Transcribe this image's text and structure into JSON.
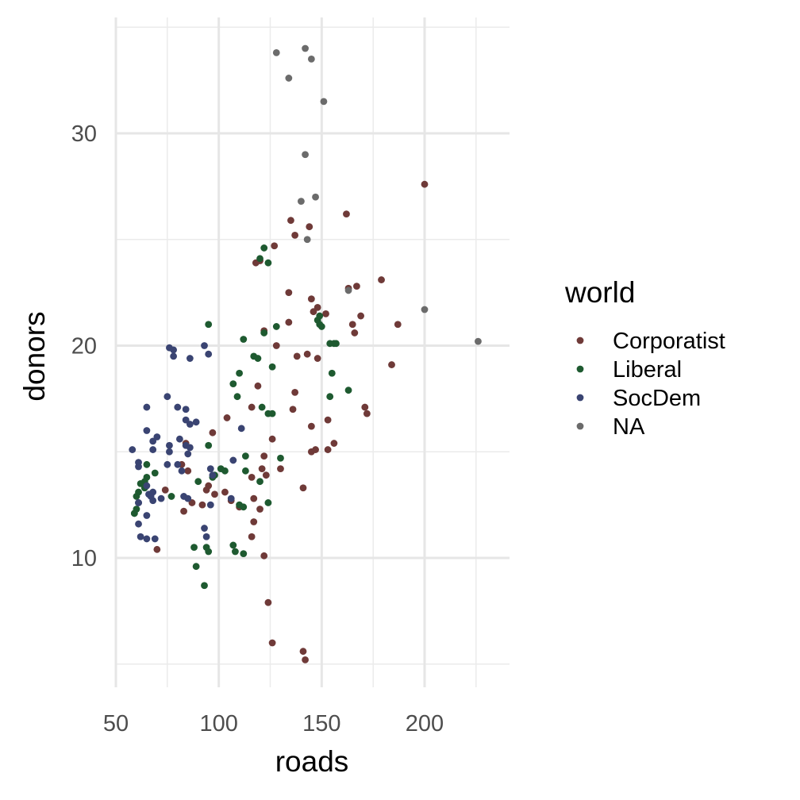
{
  "chart_data": {
    "type": "scatter",
    "xlabel": "roads",
    "ylabel": "donors",
    "xlim": [
      50,
      235
    ],
    "ylim": [
      5,
      35
    ],
    "x_ticks": [
      50,
      100,
      150,
      200
    ],
    "y_ticks": [
      10,
      20,
      30
    ],
    "x_tick_labels": [
      "50",
      "100",
      "150",
      "200"
    ],
    "y_tick_labels": [
      "10",
      "20",
      "30"
    ],
    "grid": true,
    "legend": {
      "title": "world",
      "position": "right",
      "entries": [
        "Corporatist",
        "Liberal",
        "SocDem",
        "NA"
      ]
    },
    "series": [
      {
        "name": "Corporatist",
        "color": "#6f3a38",
        "points": [
          [
            200,
            27.6
          ],
          [
            162,
            26.2
          ],
          [
            144,
            25.6
          ],
          [
            135,
            25.9
          ],
          [
            137,
            25.2
          ],
          [
            127,
            24.7
          ],
          [
            120,
            24.0
          ],
          [
            118,
            23.9
          ],
          [
            179,
            23.1
          ],
          [
            167,
            22.8
          ],
          [
            163,
            22.7
          ],
          [
            134,
            22.5
          ],
          [
            145,
            22.2
          ],
          [
            148,
            21.8
          ],
          [
            146,
            21.6
          ],
          [
            152,
            21.5
          ],
          [
            169,
            21.4
          ],
          [
            134,
            21.1
          ],
          [
            165,
            21.0
          ],
          [
            187,
            21.0
          ],
          [
            122,
            20.7
          ],
          [
            166,
            20.6
          ],
          [
            128,
            20.0
          ],
          [
            143,
            19.6
          ],
          [
            138,
            19.5
          ],
          [
            148,
            19.4
          ],
          [
            184,
            19.1
          ],
          [
            119,
            18.1
          ],
          [
            137,
            17.8
          ],
          [
            171,
            17.1
          ],
          [
            136,
            17.0
          ],
          [
            116,
            17.1
          ],
          [
            172,
            16.8
          ],
          [
            104,
            16.6
          ],
          [
            153,
            16.5
          ],
          [
            145,
            16.2
          ],
          [
            97,
            15.9
          ],
          [
            126,
            15.6
          ],
          [
            156,
            15.4
          ],
          [
            84,
            15.4
          ],
          [
            153,
            15.1
          ],
          [
            147,
            15.1
          ],
          [
            145,
            15.0
          ],
          [
            122,
            14.8
          ],
          [
            82,
            14.4
          ],
          [
            121,
            14.2
          ],
          [
            130,
            14.2
          ],
          [
            85,
            14.1
          ],
          [
            116,
            13.8
          ],
          [
            123,
            13.9
          ],
          [
            95,
            13.4
          ],
          [
            141,
            13.3
          ],
          [
            94,
            13.2
          ],
          [
            74,
            13.2
          ],
          [
            103,
            13.1
          ],
          [
            98,
            13.0
          ],
          [
            117,
            12.8
          ],
          [
            106,
            12.7
          ],
          [
            87,
            12.6
          ],
          [
            92,
            12.5
          ],
          [
            110,
            12.4
          ],
          [
            120,
            12.3
          ],
          [
            83,
            12.2
          ],
          [
            117,
            11.7
          ],
          [
            116,
            11.0
          ],
          [
            70,
            10.4
          ],
          [
            122,
            10.1
          ],
          [
            124,
            7.9
          ],
          [
            126,
            6.0
          ],
          [
            141,
            5.6
          ],
          [
            142,
            5.2
          ]
        ]
      },
      {
        "name": "Liberal",
        "color": "#1e5a30",
        "points": [
          [
            122,
            24.6
          ],
          [
            120,
            24.1
          ],
          [
            124,
            23.9
          ],
          [
            149,
            21.4
          ],
          [
            148,
            21.2
          ],
          [
            149,
            21.0
          ],
          [
            150,
            20.9
          ],
          [
            95,
            21.0
          ],
          [
            128,
            20.9
          ],
          [
            122,
            20.6
          ],
          [
            112,
            20.3
          ],
          [
            154,
            20.1
          ],
          [
            156,
            20.1
          ],
          [
            157,
            20.1
          ],
          [
            117,
            19.5
          ],
          [
            119,
            19.4
          ],
          [
            126,
            19.0
          ],
          [
            110,
            18.7
          ],
          [
            155,
            18.7
          ],
          [
            107,
            18.2
          ],
          [
            163,
            17.9
          ],
          [
            109,
            17.6
          ],
          [
            154,
            17.6
          ],
          [
            121,
            17.1
          ],
          [
            124,
            16.8
          ],
          [
            126,
            16.8
          ],
          [
            95,
            15.3
          ],
          [
            113,
            14.8
          ],
          [
            130,
            14.7
          ],
          [
            69,
            14.0
          ],
          [
            101,
            14.2
          ],
          [
            103,
            14.1
          ],
          [
            113,
            14.1
          ],
          [
            97,
            13.8
          ],
          [
            98,
            13.9
          ],
          [
            64,
            13.6
          ],
          [
            65,
            13.8
          ],
          [
            120,
            13.6
          ],
          [
            90,
            13.6
          ],
          [
            64,
            13.3
          ],
          [
            61,
            13.1
          ],
          [
            60,
            12.9
          ],
          [
            77,
            12.9
          ],
          [
            124,
            12.6
          ],
          [
            110,
            12.5
          ],
          [
            112,
            12.4
          ],
          [
            60,
            12.3
          ],
          [
            59,
            12.1
          ],
          [
            59,
            12.1
          ],
          [
            88,
            10.5
          ],
          [
            107,
            10.6
          ],
          [
            94,
            10.5
          ],
          [
            95,
            10.3
          ],
          [
            108,
            10.3
          ],
          [
            112,
            10.2
          ],
          [
            89,
            9.6
          ],
          [
            93,
            8.7
          ],
          [
            65,
            14.4
          ],
          [
            62,
            13.5
          ]
        ]
      },
      {
        "name": "SocDem",
        "color": "#3a4472",
        "points": [
          [
            76,
            19.9
          ],
          [
            93,
            20.0
          ],
          [
            78,
            19.8
          ],
          [
            78,
            19.5
          ],
          [
            95,
            19.6
          ],
          [
            86,
            19.4
          ],
          [
            75,
            17.6
          ],
          [
            80,
            17.1
          ],
          [
            84,
            17.0
          ],
          [
            65,
            17.1
          ],
          [
            89,
            16.4
          ],
          [
            84,
            16.5
          ],
          [
            86,
            16.3
          ],
          [
            65,
            16.0
          ],
          [
            111,
            16.1
          ],
          [
            81,
            15.6
          ],
          [
            70,
            15.7
          ],
          [
            68,
            15.5
          ],
          [
            84,
            15.3
          ],
          [
            86,
            15.2
          ],
          [
            76,
            15.3
          ],
          [
            58,
            15.1
          ],
          [
            68,
            15.1
          ],
          [
            76,
            15.0
          ],
          [
            85,
            14.9
          ],
          [
            107,
            14.6
          ],
          [
            61,
            14.5
          ],
          [
            80,
            14.4
          ],
          [
            75,
            14.4
          ],
          [
            61,
            14.3
          ],
          [
            82,
            14.1
          ],
          [
            96,
            14.2
          ],
          [
            97,
            13.9
          ],
          [
            65,
            13.4
          ],
          [
            68,
            13.1
          ],
          [
            66,
            13.0
          ],
          [
            67,
            12.9
          ],
          [
            72,
            12.8
          ],
          [
            83,
            12.9
          ],
          [
            85,
            12.8
          ],
          [
            106,
            12.8
          ],
          [
            61,
            12.6
          ],
          [
            68,
            12.7
          ],
          [
            96,
            12.5
          ],
          [
            65,
            12.0
          ],
          [
            61,
            11.6
          ],
          [
            93,
            11.4
          ],
          [
            94,
            11.0
          ],
          [
            62,
            11.0
          ],
          [
            69,
            10.9
          ],
          [
            65,
            10.9
          ],
          [
            61,
            12.6
          ]
        ]
      },
      {
        "name": "NA",
        "color": "#6b6b6b",
        "points": [
          [
            142,
            34.0
          ],
          [
            128,
            33.8
          ],
          [
            145,
            33.5
          ],
          [
            134,
            32.6
          ],
          [
            151,
            31.5
          ],
          [
            142,
            29.0
          ],
          [
            147,
            27.0
          ],
          [
            140,
            26.8
          ],
          [
            143,
            25.0
          ],
          [
            163,
            22.6
          ],
          [
            200,
            21.7
          ],
          [
            226,
            20.2
          ]
        ]
      }
    ]
  }
}
